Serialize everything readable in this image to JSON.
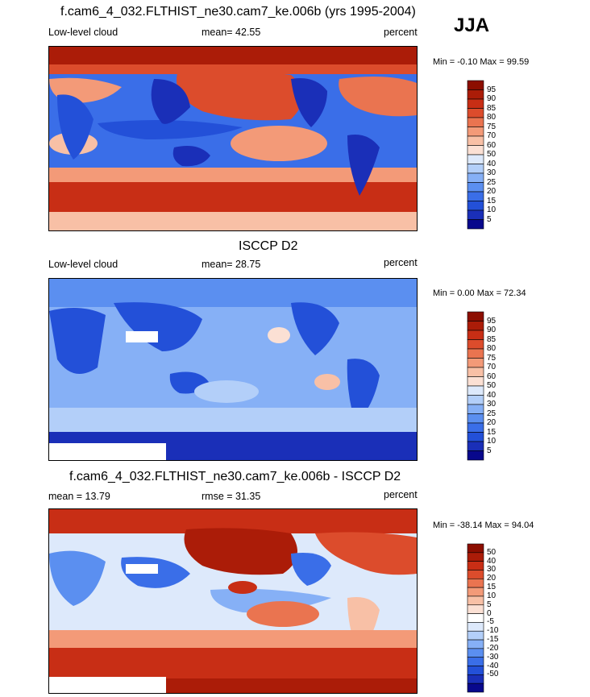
{
  "header": {
    "season": "JJA"
  },
  "colors": {
    "seq": [
      "#08088c",
      "#1a2fb8",
      "#2350d8",
      "#3a6ee8",
      "#5b8ff0",
      "#86b0f6",
      "#b3cff9",
      "#dde9fb",
      "#fbe0d4",
      "#f8c0a6",
      "#f39a78",
      "#ea7450",
      "#dc4c2c",
      "#c82e15",
      "#ab1c08",
      "#8c0e00"
    ],
    "diff": [
      "#08088c",
      "#1a2fb8",
      "#2350d8",
      "#3a6ee8",
      "#5b8ff0",
      "#86b0f6",
      "#b3cff9",
      "#dde9fb",
      "#ffffff",
      "#fbe0d4",
      "#f8c0a6",
      "#f39a78",
      "#ea7450",
      "#dc4c2c",
      "#c82e15",
      "#ab1c08",
      "#8c0e00"
    ]
  },
  "panels": [
    {
      "title": "f.cam6_4_032.FLTHIST_ne30.cam7_ke.006b (yrs 1995-2004)",
      "left_label": "Low-level cloud",
      "mean_label": "mean=  42.55",
      "units": "percent",
      "minmax": "Min =  -0.10 Max =  99.59",
      "colorbar_labels": [
        "95",
        "90",
        "85",
        "80",
        "75",
        "70",
        "60",
        "50",
        "40",
        "30",
        "25",
        "20",
        "15",
        "10",
        "5"
      ]
    },
    {
      "title": "ISCCP D2",
      "left_label": "Low-level cloud",
      "mean_label": "mean=  28.75",
      "units": "percent",
      "minmax": "Min =   0.00 Max =  72.34",
      "colorbar_labels": [
        "95",
        "90",
        "85",
        "80",
        "75",
        "70",
        "60",
        "50",
        "40",
        "30",
        "25",
        "20",
        "15",
        "10",
        "5"
      ]
    },
    {
      "title": "f.cam6_4_032.FLTHIST_ne30.cam7_ke.006b - ISCCP D2",
      "left_label": "mean =  13.79",
      "mean_label": "rmse =  31.35",
      "units": "percent",
      "minmax": "Min = -38.14 Max =  94.04",
      "colorbar_labels": [
        "50",
        "40",
        "30",
        "20",
        "15",
        "10",
        "5",
        "0",
        "-5",
        "-10",
        "-15",
        "-20",
        "-30",
        "-40",
        "-50"
      ]
    }
  ],
  "chart_data": [
    {
      "type": "heatmap",
      "title": "f.cam6_4_032.FLTHIST_ne30.cam7_ke.006b (yrs 1995-2004)",
      "variable": "Low-level cloud",
      "units": "percent",
      "mean": 42.55,
      "min": -0.1,
      "max": 99.59,
      "levels": [
        5,
        10,
        15,
        20,
        25,
        30,
        40,
        50,
        60,
        70,
        75,
        80,
        85,
        90,
        95
      ]
    },
    {
      "type": "heatmap",
      "title": "ISCCP D2",
      "variable": "Low-level cloud",
      "units": "percent",
      "mean": 28.75,
      "min": 0.0,
      "max": 72.34,
      "levels": [
        5,
        10,
        15,
        20,
        25,
        30,
        40,
        50,
        60,
        70,
        75,
        80,
        85,
        90,
        95
      ]
    },
    {
      "type": "heatmap",
      "title": "f.cam6_4_032.FLTHIST_ne30.cam7_ke.006b - ISCCP D2",
      "units": "percent",
      "mean": 13.79,
      "rmse": 31.35,
      "min": -38.14,
      "max": 94.04,
      "levels": [
        -50,
        -40,
        -30,
        -20,
        -15,
        -10,
        -5,
        0,
        5,
        10,
        15,
        20,
        30,
        40,
        50
      ]
    }
  ]
}
